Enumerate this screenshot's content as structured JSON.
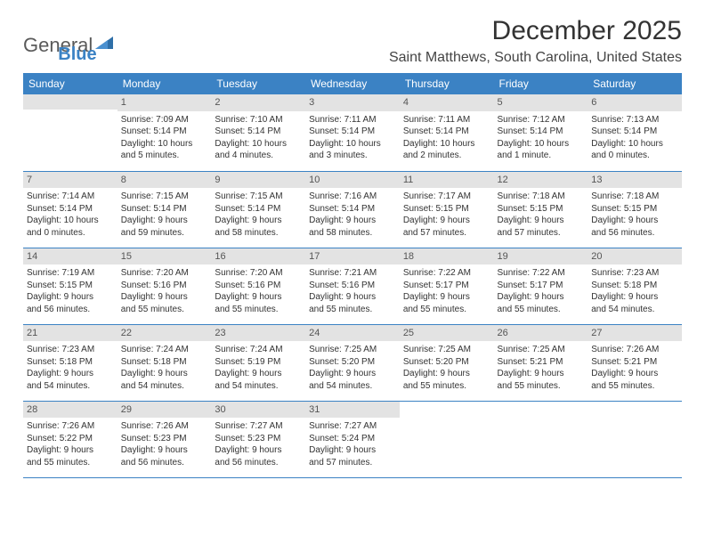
{
  "logo": {
    "general": "General",
    "blue": "Blue"
  },
  "title": "December 2025",
  "location": "Saint Matthews, South Carolina, United States",
  "day_headers": [
    "Sunday",
    "Monday",
    "Tuesday",
    "Wednesday",
    "Thursday",
    "Friday",
    "Saturday"
  ],
  "colors": {
    "header_bg": "#3b82c4",
    "daynum_bg": "#e3e3e3",
    "rule": "#3b82c4"
  },
  "weeks": [
    [
      null,
      {
        "n": "1",
        "sr": "Sunrise: 7:09 AM",
        "ss": "Sunset: 5:14 PM",
        "d1": "Daylight: 10 hours",
        "d2": "and 5 minutes."
      },
      {
        "n": "2",
        "sr": "Sunrise: 7:10 AM",
        "ss": "Sunset: 5:14 PM",
        "d1": "Daylight: 10 hours",
        "d2": "and 4 minutes."
      },
      {
        "n": "3",
        "sr": "Sunrise: 7:11 AM",
        "ss": "Sunset: 5:14 PM",
        "d1": "Daylight: 10 hours",
        "d2": "and 3 minutes."
      },
      {
        "n": "4",
        "sr": "Sunrise: 7:11 AM",
        "ss": "Sunset: 5:14 PM",
        "d1": "Daylight: 10 hours",
        "d2": "and 2 minutes."
      },
      {
        "n": "5",
        "sr": "Sunrise: 7:12 AM",
        "ss": "Sunset: 5:14 PM",
        "d1": "Daylight: 10 hours",
        "d2": "and 1 minute."
      },
      {
        "n": "6",
        "sr": "Sunrise: 7:13 AM",
        "ss": "Sunset: 5:14 PM",
        "d1": "Daylight: 10 hours",
        "d2": "and 0 minutes."
      }
    ],
    [
      {
        "n": "7",
        "sr": "Sunrise: 7:14 AM",
        "ss": "Sunset: 5:14 PM",
        "d1": "Daylight: 10 hours",
        "d2": "and 0 minutes."
      },
      {
        "n": "8",
        "sr": "Sunrise: 7:15 AM",
        "ss": "Sunset: 5:14 PM",
        "d1": "Daylight: 9 hours",
        "d2": "and 59 minutes."
      },
      {
        "n": "9",
        "sr": "Sunrise: 7:15 AM",
        "ss": "Sunset: 5:14 PM",
        "d1": "Daylight: 9 hours",
        "d2": "and 58 minutes."
      },
      {
        "n": "10",
        "sr": "Sunrise: 7:16 AM",
        "ss": "Sunset: 5:14 PM",
        "d1": "Daylight: 9 hours",
        "d2": "and 58 minutes."
      },
      {
        "n": "11",
        "sr": "Sunrise: 7:17 AM",
        "ss": "Sunset: 5:15 PM",
        "d1": "Daylight: 9 hours",
        "d2": "and 57 minutes."
      },
      {
        "n": "12",
        "sr": "Sunrise: 7:18 AM",
        "ss": "Sunset: 5:15 PM",
        "d1": "Daylight: 9 hours",
        "d2": "and 57 minutes."
      },
      {
        "n": "13",
        "sr": "Sunrise: 7:18 AM",
        "ss": "Sunset: 5:15 PM",
        "d1": "Daylight: 9 hours",
        "d2": "and 56 minutes."
      }
    ],
    [
      {
        "n": "14",
        "sr": "Sunrise: 7:19 AM",
        "ss": "Sunset: 5:15 PM",
        "d1": "Daylight: 9 hours",
        "d2": "and 56 minutes."
      },
      {
        "n": "15",
        "sr": "Sunrise: 7:20 AM",
        "ss": "Sunset: 5:16 PM",
        "d1": "Daylight: 9 hours",
        "d2": "and 55 minutes."
      },
      {
        "n": "16",
        "sr": "Sunrise: 7:20 AM",
        "ss": "Sunset: 5:16 PM",
        "d1": "Daylight: 9 hours",
        "d2": "and 55 minutes."
      },
      {
        "n": "17",
        "sr": "Sunrise: 7:21 AM",
        "ss": "Sunset: 5:16 PM",
        "d1": "Daylight: 9 hours",
        "d2": "and 55 minutes."
      },
      {
        "n": "18",
        "sr": "Sunrise: 7:22 AM",
        "ss": "Sunset: 5:17 PM",
        "d1": "Daylight: 9 hours",
        "d2": "and 55 minutes."
      },
      {
        "n": "19",
        "sr": "Sunrise: 7:22 AM",
        "ss": "Sunset: 5:17 PM",
        "d1": "Daylight: 9 hours",
        "d2": "and 55 minutes."
      },
      {
        "n": "20",
        "sr": "Sunrise: 7:23 AM",
        "ss": "Sunset: 5:18 PM",
        "d1": "Daylight: 9 hours",
        "d2": "and 54 minutes."
      }
    ],
    [
      {
        "n": "21",
        "sr": "Sunrise: 7:23 AM",
        "ss": "Sunset: 5:18 PM",
        "d1": "Daylight: 9 hours",
        "d2": "and 54 minutes."
      },
      {
        "n": "22",
        "sr": "Sunrise: 7:24 AM",
        "ss": "Sunset: 5:18 PM",
        "d1": "Daylight: 9 hours",
        "d2": "and 54 minutes."
      },
      {
        "n": "23",
        "sr": "Sunrise: 7:24 AM",
        "ss": "Sunset: 5:19 PM",
        "d1": "Daylight: 9 hours",
        "d2": "and 54 minutes."
      },
      {
        "n": "24",
        "sr": "Sunrise: 7:25 AM",
        "ss": "Sunset: 5:20 PM",
        "d1": "Daylight: 9 hours",
        "d2": "and 54 minutes."
      },
      {
        "n": "25",
        "sr": "Sunrise: 7:25 AM",
        "ss": "Sunset: 5:20 PM",
        "d1": "Daylight: 9 hours",
        "d2": "and 55 minutes."
      },
      {
        "n": "26",
        "sr": "Sunrise: 7:25 AM",
        "ss": "Sunset: 5:21 PM",
        "d1": "Daylight: 9 hours",
        "d2": "and 55 minutes."
      },
      {
        "n": "27",
        "sr": "Sunrise: 7:26 AM",
        "ss": "Sunset: 5:21 PM",
        "d1": "Daylight: 9 hours",
        "d2": "and 55 minutes."
      }
    ],
    [
      {
        "n": "28",
        "sr": "Sunrise: 7:26 AM",
        "ss": "Sunset: 5:22 PM",
        "d1": "Daylight: 9 hours",
        "d2": "and 55 minutes."
      },
      {
        "n": "29",
        "sr": "Sunrise: 7:26 AM",
        "ss": "Sunset: 5:23 PM",
        "d1": "Daylight: 9 hours",
        "d2": "and 56 minutes."
      },
      {
        "n": "30",
        "sr": "Sunrise: 7:27 AM",
        "ss": "Sunset: 5:23 PM",
        "d1": "Daylight: 9 hours",
        "d2": "and 56 minutes."
      },
      {
        "n": "31",
        "sr": "Sunrise: 7:27 AM",
        "ss": "Sunset: 5:24 PM",
        "d1": "Daylight: 9 hours",
        "d2": "and 57 minutes."
      },
      null,
      null,
      null
    ]
  ]
}
